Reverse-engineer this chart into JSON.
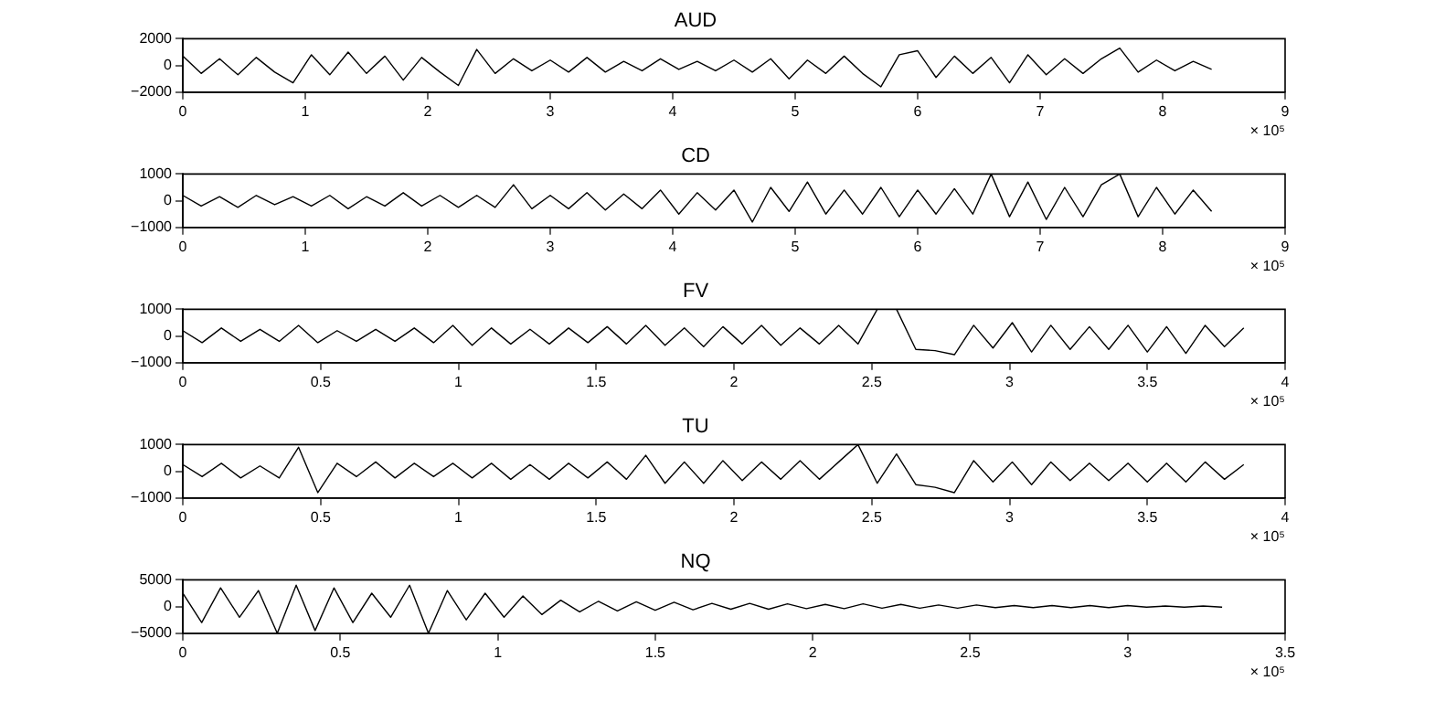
{
  "chart_data": [
    {
      "type": "line",
      "title": "AUD",
      "marker": "none",
      "color": "#000000",
      "annotations": [
        "× 10⁵"
      ],
      "xlim": [
        0,
        9
      ],
      "xticks": [
        0,
        1,
        2,
        3,
        4,
        5,
        6,
        7,
        8,
        9
      ],
      "ylim": [
        -2000,
        2000
      ],
      "yticks": [
        {
          "value": -2000,
          "label": "−2000"
        },
        0,
        2000
      ],
      "x": [
        0,
        0.15,
        0.3,
        0.45,
        0.6,
        0.75,
        0.9,
        1.05,
        1.2,
        1.35,
        1.5,
        1.65,
        1.8,
        1.95,
        2.1,
        2.25,
        2.4,
        2.55,
        2.7,
        2.85,
        3,
        3.15,
        3.3,
        3.45,
        3.6,
        3.75,
        3.9,
        4.05,
        4.2,
        4.35,
        4.5,
        4.65,
        4.8,
        4.95,
        5.1,
        5.25,
        5.4,
        5.55,
        5.7,
        5.85,
        6,
        6.15,
        6.3,
        6.45,
        6.6,
        6.75,
        6.9,
        7.05,
        7.2,
        7.35,
        7.5,
        7.65,
        7.8,
        7.95,
        8.1,
        8.25,
        8.4
      ],
      "values": [
        700,
        -600,
        500,
        -700,
        600,
        -500,
        -1300,
        800,
        -700,
        1000,
        -600,
        700,
        -1100,
        600,
        -500,
        -1500,
        1200,
        -600,
        500,
        -400,
        400,
        -500,
        600,
        -500,
        300,
        -400,
        500,
        -300,
        300,
        -400,
        400,
        -500,
        500,
        -1000,
        400,
        -600,
        700,
        -600,
        -1600,
        800,
        1100,
        -900,
        700,
        -600,
        600,
        -1300,
        800,
        -700,
        500,
        -600,
        500,
        1300,
        -500,
        400,
        -400,
        300,
        -300
      ]
    },
    {
      "type": "line",
      "title": "CD",
      "marker": "none",
      "color": "#000000",
      "annotations": [
        "× 10⁵"
      ],
      "xlim": [
        0,
        9
      ],
      "xticks": [
        0,
        1,
        2,
        3,
        4,
        5,
        6,
        7,
        8,
        9
      ],
      "ylim": [
        -1000,
        1000
      ],
      "yticks": [
        {
          "value": -1000,
          "label": "−1000"
        },
        0,
        1000
      ],
      "x": [
        0,
        0.15,
        0.3,
        0.45,
        0.6,
        0.75,
        0.9,
        1.05,
        1.2,
        1.35,
        1.5,
        1.65,
        1.8,
        1.95,
        2.1,
        2.25,
        2.4,
        2.55,
        2.7,
        2.85,
        3,
        3.15,
        3.3,
        3.45,
        3.6,
        3.75,
        3.9,
        4.05,
        4.2,
        4.35,
        4.5,
        4.65,
        4.8,
        4.95,
        5.1,
        5.25,
        5.4,
        5.55,
        5.7,
        5.85,
        6,
        6.15,
        6.3,
        6.45,
        6.6,
        6.75,
        6.9,
        7.05,
        7.2,
        7.35,
        7.5,
        7.65,
        7.8,
        7.95,
        8.1,
        8.25,
        8.4
      ],
      "values": [
        200,
        -200,
        150,
        -250,
        200,
        -150,
        150,
        -200,
        200,
        -300,
        150,
        -200,
        300,
        -200,
        200,
        -250,
        200,
        -250,
        600,
        -300,
        200,
        -300,
        300,
        -350,
        250,
        -300,
        400,
        -500,
        300,
        -350,
        400,
        -800,
        500,
        -400,
        700,
        -500,
        400,
        -500,
        500,
        -600,
        400,
        -500,
        450,
        -500,
        1000,
        -600,
        700,
        -700,
        500,
        -600,
        600,
        1000,
        -600,
        500,
        -500,
        400,
        -400
      ]
    },
    {
      "type": "line",
      "title": "FV",
      "marker": "none",
      "color": "#000000",
      "annotations": [
        "× 10⁵"
      ],
      "xlim": [
        0,
        4
      ],
      "xticks": [
        0,
        0.5,
        1,
        1.5,
        2,
        2.5,
        3,
        3.5,
        4
      ],
      "ylim": [
        -1000,
        1000
      ],
      "yticks": [
        {
          "value": -1000,
          "label": "−1000"
        },
        0,
        1000
      ],
      "x": [
        0,
        0.07,
        0.14,
        0.21,
        0.28,
        0.35,
        0.42,
        0.49,
        0.56,
        0.63,
        0.7,
        0.77,
        0.84,
        0.91,
        0.98,
        1.05,
        1.12,
        1.19,
        1.26,
        1.33,
        1.4,
        1.47,
        1.54,
        1.61,
        1.68,
        1.75,
        1.82,
        1.89,
        1.96,
        2.03,
        2.1,
        2.17,
        2.24,
        2.31,
        2.38,
        2.45,
        2.52,
        2.59,
        2.66,
        2.73,
        2.8,
        2.87,
        2.94,
        3.01,
        3.08,
        3.15,
        3.22,
        3.29,
        3.36,
        3.43,
        3.5,
        3.57,
        3.64,
        3.71,
        3.78,
        3.85
      ],
      "values": [
        200,
        -250,
        300,
        -200,
        250,
        -200,
        400,
        -250,
        200,
        -200,
        250,
        -200,
        300,
        -250,
        400,
        -350,
        300,
        -300,
        250,
        -300,
        300,
        -250,
        350,
        -300,
        400,
        -350,
        300,
        -400,
        350,
        -300,
        400,
        -350,
        300,
        -300,
        400,
        -300,
        1000,
        1000,
        -500,
        -550,
        -700,
        400,
        -450,
        500,
        -600,
        400,
        -500,
        350,
        -500,
        400,
        -600,
        350,
        -650,
        400,
        -400,
        300
      ]
    },
    {
      "type": "line",
      "title": "TU",
      "marker": "none",
      "color": "#000000",
      "annotations": [
        "× 10⁵"
      ],
      "xlim": [
        0,
        4
      ],
      "xticks": [
        0,
        0.5,
        1,
        1.5,
        2,
        2.5,
        3,
        3.5,
        4
      ],
      "ylim": [
        -1000,
        1000
      ],
      "yticks": [
        {
          "value": -1000,
          "label": "−1000"
        },
        0,
        1000
      ],
      "x": [
        0,
        0.07,
        0.14,
        0.21,
        0.28,
        0.35,
        0.42,
        0.49,
        0.56,
        0.63,
        0.7,
        0.77,
        0.84,
        0.91,
        0.98,
        1.05,
        1.12,
        1.19,
        1.26,
        1.33,
        1.4,
        1.47,
        1.54,
        1.61,
        1.68,
        1.75,
        1.82,
        1.89,
        1.96,
        2.03,
        2.1,
        2.17,
        2.24,
        2.31,
        2.38,
        2.45,
        2.52,
        2.59,
        2.66,
        2.73,
        2.8,
        2.87,
        2.94,
        3.01,
        3.08,
        3.15,
        3.22,
        3.29,
        3.36,
        3.43,
        3.5,
        3.57,
        3.64,
        3.71,
        3.78,
        3.85
      ],
      "values": [
        250,
        -200,
        300,
        -250,
        200,
        -250,
        900,
        -800,
        300,
        -200,
        350,
        -250,
        300,
        -200,
        300,
        -250,
        300,
        -300,
        250,
        -300,
        300,
        -250,
        350,
        -300,
        600,
        -450,
        350,
        -450,
        400,
        -350,
        350,
        -300,
        400,
        -300,
        350,
        1000,
        -450,
        650,
        -500,
        -600,
        -800,
        400,
        -400,
        350,
        -500,
        350,
        -350,
        300,
        -350,
        300,
        -400,
        300,
        -400,
        350,
        -300,
        250
      ]
    },
    {
      "type": "line",
      "title": "NQ",
      "marker": "none",
      "color": "#000000",
      "annotations": [
        "× 10⁵"
      ],
      "xlim": [
        0,
        3.5
      ],
      "xticks": [
        0,
        0.5,
        1,
        1.5,
        2,
        2.5,
        3,
        3.5
      ],
      "ylim": [
        -5000,
        5000
      ],
      "yticks": [
        {
          "value": -5000,
          "label": "−5000"
        },
        0,
        5000
      ],
      "x": [
        0,
        0.06,
        0.12,
        0.18,
        0.24,
        0.3,
        0.36,
        0.42,
        0.48,
        0.54,
        0.6,
        0.66,
        0.72,
        0.78,
        0.84,
        0.9,
        0.96,
        1.02,
        1.08,
        1.14,
        1.2,
        1.26,
        1.32,
        1.38,
        1.44,
        1.5,
        1.56,
        1.62,
        1.68,
        1.74,
        1.8,
        1.86,
        1.92,
        1.98,
        2.04,
        2.1,
        2.16,
        2.22,
        2.28,
        2.34,
        2.4,
        2.46,
        2.52,
        2.58,
        2.64,
        2.7,
        2.76,
        2.82,
        2.88,
        2.94,
        3,
        3.06,
        3.12,
        3.18,
        3.24,
        3.3
      ],
      "values": [
        2500,
        -3000,
        3500,
        -2000,
        3000,
        -5000,
        4000,
        -4500,
        3500,
        -3000,
        2500,
        -2000,
        4000,
        -5000,
        3000,
        -2500,
        2500,
        -2000,
        2000,
        -1500,
        1200,
        -1000,
        1000,
        -800,
        900,
        -700,
        800,
        -600,
        600,
        -500,
        600,
        -500,
        500,
        -400,
        400,
        -400,
        500,
        -300,
        400,
        -300,
        300,
        -300,
        300,
        -200,
        200,
        -200,
        200,
        -200,
        200,
        -200,
        200,
        -100,
        100,
        -100,
        100,
        -100
      ]
    }
  ]
}
